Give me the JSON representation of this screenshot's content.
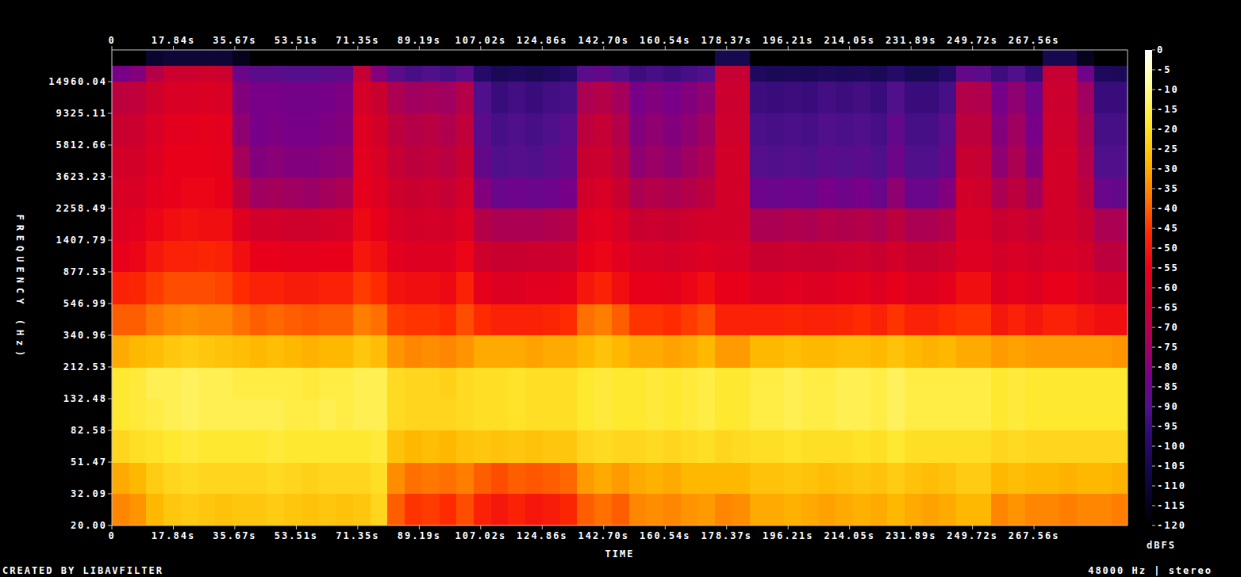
{
  "chart_data": {
    "type": "heatmap",
    "x_label": "TIME",
    "y_label": "FREQUENCY (Hz)",
    "credit": "CREATED BY LIBAVFILTER",
    "info": "48000 Hz | stereo",
    "log": "y",
    "xlim": [
      0,
      294.7
    ],
    "ylim": [
      20,
      24000
    ],
    "xticks": [
      0,
      {
        "value": 17.84,
        "label": "17.84s"
      },
      {
        "value": 35.67,
        "label": "35.67s"
      },
      {
        "value": 53.51,
        "label": "53.51s"
      },
      {
        "value": 71.35,
        "label": "71.35s"
      },
      {
        "value": 89.19,
        "label": "89.19s"
      },
      {
        "value": 107.02,
        "label": "107.02s"
      },
      {
        "value": 124.86,
        "label": "124.86s"
      },
      {
        "value": 142.7,
        "label": "142.70s"
      },
      {
        "value": 160.54,
        "label": "160.54s"
      },
      {
        "value": 178.37,
        "label": "178.37s"
      },
      {
        "value": 196.21,
        "label": "196.21s"
      },
      {
        "value": 214.05,
        "label": "214.05s"
      },
      {
        "value": 231.89,
        "label": "231.89s"
      },
      {
        "value": 249.72,
        "label": "249.72s"
      },
      {
        "value": 267.56,
        "label": "267.56s"
      }
    ],
    "yticks": [
      {
        "value": 20,
        "label": "20.00"
      },
      {
        "value": 32.09,
        "label": "32.09"
      },
      {
        "value": 51.47,
        "label": "51.47"
      },
      {
        "value": 82.58,
        "label": "82.58"
      },
      {
        "value": 132.48,
        "label": "132.48"
      },
      {
        "value": 212.53,
        "label": "212.53"
      },
      {
        "value": 340.96,
        "label": "340.96"
      },
      {
        "value": 546.99,
        "label": "546.99"
      },
      {
        "value": 877.53,
        "label": "877.53"
      },
      {
        "value": 1407.79,
        "label": "1407.79"
      },
      {
        "value": 2258.49,
        "label": "2258.49"
      },
      {
        "value": 3623.23,
        "label": "3623.23"
      },
      {
        "value": 5812.66,
        "label": "5812.66"
      },
      {
        "value": 9325.11,
        "label": "9325.11"
      },
      {
        "value": 14960.04,
        "label": "14960.04"
      }
    ],
    "x_bins": [
      0,
      5,
      10,
      15,
      20,
      25,
      30,
      35,
      40,
      45,
      50,
      55,
      60,
      65,
      70,
      75,
      80,
      85,
      90,
      95,
      100,
      105,
      110,
      115,
      120,
      125,
      130,
      135,
      140,
      145,
      150,
      155,
      160,
      165,
      170,
      175,
      180,
      185,
      190,
      195,
      200,
      205,
      210,
      215,
      220,
      225,
      230,
      235,
      240,
      245,
      250,
      255,
      260,
      265,
      270,
      275,
      280,
      285,
      290,
      294.7
    ],
    "y_bins": [
      20,
      32.09,
      51.47,
      82.58,
      132.48,
      212.53,
      340.96,
      546.99,
      877.53,
      1407.79,
      2258.49,
      3623.23,
      5812.66,
      9325.11,
      14960.04,
      19000,
      24000
    ],
    "cells": [
      [
        -35,
        -30,
        -22,
        -18,
        -18,
        -30,
        -40,
        -48,
        -55,
        -58,
        -60,
        -62,
        -65,
        -68,
        -82,
        -120
      ],
      [
        -33,
        -28,
        -20,
        -17,
        -17,
        -28,
        -40,
        -47,
        -54,
        -57,
        -60,
        -62,
        -64,
        -67,
        -80,
        -120
      ],
      [
        -28,
        -24,
        -19,
        -16,
        -15,
        -27,
        -37,
        -44,
        -50,
        -54,
        -57,
        -58,
        -60,
        -63,
        -70,
        -112
      ],
      [
        -25,
        -22,
        -18,
        -15,
        -15,
        -25,
        -35,
        -42,
        -48,
        -52,
        -55,
        -55,
        -57,
        -60,
        -64,
        -110
      ],
      [
        -24,
        -21,
        -17,
        -14,
        -14,
        -24,
        -34,
        -42,
        -48,
        -51,
        -54,
        -55,
        -57,
        -60,
        -64,
        -110
      ],
      [
        -25,
        -22,
        -18,
        -15,
        -15,
        -25,
        -35,
        -42,
        -47,
        -52,
        -54,
        -55,
        -56,
        -59,
        -63,
        -110
      ],
      [
        -26,
        -22,
        -18,
        -15,
        -15,
        -26,
        -35,
        -43,
        -48,
        -52,
        -55,
        -56,
        -57,
        -60,
        -64,
        -110
      ],
      [
        -25,
        -22,
        -18,
        -15,
        -16,
        -27,
        -38,
        -46,
        -52,
        -58,
        -68,
        -74,
        -78,
        -80,
        -85,
        -115
      ],
      [
        -25,
        -22,
        -18,
        -15,
        -16,
        -28,
        -40,
        -48,
        -55,
        -62,
        -75,
        -80,
        -82,
        -82,
        -88,
        -120
      ],
      [
        -24,
        -21,
        -17,
        -15,
        -16,
        -27,
        -39,
        -48,
        -55,
        -62,
        -74,
        -79,
        -81,
        -82,
        -88,
        -120
      ],
      [
        -25,
        -22,
        -18,
        -16,
        -16,
        -28,
        -40,
        -49,
        -56,
        -63,
        -75,
        -80,
        -82,
        -83,
        -89,
        -120
      ],
      [
        -26,
        -23,
        -18,
        -16,
        -17,
        -29,
        -41,
        -49,
        -56,
        -63,
        -76,
        -80,
        -82,
        -83,
        -89,
        -120
      ],
      [
        -25,
        -22,
        -18,
        -15,
        -16,
        -28,
        -40,
        -48,
        -55,
        -62,
        -74,
        -79,
        -81,
        -82,
        -88,
        -120
      ],
      [
        -26,
        -22,
        -18,
        -16,
        -16,
        -28,
        -40,
        -48,
        -55,
        -61,
        -72,
        -78,
        -80,
        -81,
        -87,
        -120
      ],
      [
        -25,
        -22,
        -18,
        -15,
        -15,
        -25,
        -36,
        -44,
        -50,
        -53,
        -56,
        -57,
        -58,
        -61,
        -66,
        -120
      ],
      [
        -22,
        -20,
        -17,
        -15,
        -15,
        -27,
        -38,
        -46,
        -52,
        -55,
        -58,
        -60,
        -62,
        -65,
        -80,
        -120
      ],
      [
        -40,
        -34,
        -26,
        -21,
        -21,
        -33,
        -44,
        -51,
        -57,
        -60,
        -63,
        -66,
        -68,
        -72,
        -88,
        -120
      ],
      [
        -45,
        -38,
        -28,
        -22,
        -22,
        -35,
        -45,
        -52,
        -58,
        -62,
        -65,
        -68,
        -70,
        -75,
        -92,
        -120
      ],
      [
        -44,
        -37,
        -27,
        -22,
        -22,
        -34,
        -45,
        -52,
        -58,
        -61,
        -64,
        -67,
        -69,
        -74,
        -90,
        -120
      ],
      [
        -46,
        -38,
        -28,
        -22,
        -23,
        -35,
        -46,
        -53,
        -58,
        -62,
        -66,
        -69,
        -71,
        -75,
        -92,
        -120
      ],
      [
        -42,
        -36,
        -26,
        -21,
        -21,
        -33,
        -42,
        -48,
        -54,
        -58,
        -62,
        -65,
        -67,
        -70,
        -88,
        -120
      ],
      [
        -48,
        -40,
        -25,
        -20,
        -20,
        -30,
        -46,
        -56,
        -63,
        -70,
        -80,
        -86,
        -88,
        -90,
        -100,
        -120
      ],
      [
        -50,
        -42,
        -26,
        -20,
        -20,
        -30,
        -48,
        -58,
        -65,
        -72,
        -85,
        -90,
        -92,
        -95,
        -104,
        -120
      ],
      [
        -48,
        -40,
        -25,
        -19,
        -19,
        -30,
        -48,
        -58,
        -65,
        -72,
        -84,
        -89,
        -90,
        -93,
        -102,
        -120
      ],
      [
        -50,
        -41,
        -26,
        -20,
        -20,
        -31,
        -48,
        -57,
        -64,
        -72,
        -85,
        -90,
        -92,
        -95,
        -104,
        -120
      ],
      [
        -49,
        -40,
        -25,
        -20,
        -20,
        -30,
        -47,
        -57,
        -64,
        -71,
        -84,
        -88,
        -90,
        -93,
        -102,
        -120
      ],
      [
        -47,
        -39,
        -25,
        -20,
        -20,
        -30,
        -46,
        -56,
        -63,
        -70,
        -82,
        -86,
        -88,
        -92,
        -100,
        -120
      ],
      [
        -40,
        -32,
        -22,
        -18,
        -18,
        -28,
        -38,
        -50,
        -55,
        -58,
        -62,
        -65,
        -68,
        -72,
        -88,
        -120
      ],
      [
        -38,
        -30,
        -21,
        -17,
        -17,
        -26,
        -36,
        -48,
        -54,
        -57,
        -60,
        -64,
        -66,
        -70,
        -86,
        -120
      ],
      [
        -40,
        -32,
        -22,
        -18,
        -18,
        -28,
        -40,
        -52,
        -57,
        -60,
        -65,
        -68,
        -70,
        -74,
        -90,
        -120
      ],
      [
        -35,
        -30,
        -22,
        -18,
        -18,
        -30,
        -45,
        -55,
        -60,
        -65,
        -72,
        -78,
        -80,
        -82,
        -94,
        -120
      ],
      [
        -34,
        -29,
        -21,
        -17,
        -17,
        -30,
        -45,
        -55,
        -60,
        -64,
        -70,
        -76,
        -78,
        -80,
        -92,
        -120
      ],
      [
        -35,
        -30,
        -22,
        -18,
        -18,
        -31,
        -46,
        -56,
        -61,
        -65,
        -72,
        -78,
        -80,
        -82,
        -94,
        -120
      ],
      [
        -33,
        -28,
        -21,
        -17,
        -17,
        -30,
        -44,
        -54,
        -60,
        -63,
        -70,
        -75,
        -78,
        -80,
        -92,
        -120
      ],
      [
        -32,
        -28,
        -20,
        -16,
        -16,
        -28,
        -42,
        -52,
        -58,
        -62,
        -68,
        -72,
        -75,
        -78,
        -90,
        -120
      ],
      [
        -35,
        -28,
        -22,
        -18,
        -18,
        -32,
        -48,
        -55,
        -60,
        -62,
        -62,
        -62,
        -63,
        -64,
        -66,
        -105
      ],
      [
        -34,
        -28,
        -21,
        -18,
        -18,
        -32,
        -48,
        -55,
        -60,
        -62,
        -62,
        -62,
        -63,
        -64,
        -66,
        -105
      ],
      [
        -30,
        -26,
        -20,
        -16,
        -16,
        -28,
        -48,
        -58,
        -65,
        -72,
        -84,
        -89,
        -91,
        -94,
        -102,
        -120
      ],
      [
        -30,
        -26,
        -20,
        -16,
        -16,
        -28,
        -48,
        -58,
        -65,
        -72,
        -85,
        -90,
        -92,
        -95,
        -104,
        -120
      ],
      [
        -29,
        -25,
        -19,
        -15,
        -15,
        -27,
        -47,
        -57,
        -64,
        -71,
        -84,
        -89,
        -91,
        -94,
        -103,
        -120
      ],
      [
        -30,
        -26,
        -20,
        -16,
        -16,
        -28,
        -48,
        -58,
        -65,
        -72,
        -85,
        -90,
        -92,
        -95,
        -104,
        -120
      ],
      [
        -31,
        -27,
        -20,
        -16,
        -16,
        -28,
        -48,
        -58,
        -65,
        -70,
        -82,
        -88,
        -90,
        -93,
        -102,
        -120
      ],
      [
        -30,
        -26,
        -20,
        -15,
        -15,
        -27,
        -47,
        -57,
        -64,
        -71,
        -84,
        -89,
        -91,
        -94,
        -103,
        -120
      ],
      [
        -29,
        -25,
        -19,
        -15,
        -15,
        -27,
        -46,
        -56,
        -63,
        -70,
        -82,
        -88,
        -90,
        -93,
        -102,
        -120
      ],
      [
        -30,
        -26,
        -20,
        -16,
        -16,
        -28,
        -48,
        -58,
        -65,
        -72,
        -85,
        -90,
        -92,
        -95,
        -104,
        -120
      ],
      [
        -28,
        -24,
        -18,
        -14,
        -14,
        -26,
        -45,
        -55,
        -62,
        -68,
        -78,
        -84,
        -86,
        -90,
        -100,
        -120
      ],
      [
        -30,
        -26,
        -20,
        -16,
        -16,
        -28,
        -48,
        -58,
        -65,
        -72,
        -85,
        -90,
        -92,
        -95,
        -104,
        -120
      ],
      [
        -31,
        -27,
        -20,
        -16,
        -16,
        -29,
        -48,
        -58,
        -65,
        -72,
        -85,
        -90,
        -92,
        -95,
        -104,
        -120
      ],
      [
        -30,
        -26,
        -20,
        -16,
        -16,
        -28,
        -46,
        -56,
        -63,
        -70,
        -80,
        -86,
        -88,
        -92,
        -100,
        -120
      ],
      [
        -28,
        -24,
        -20,
        -16,
        -16,
        -30,
        -45,
        -52,
        -58,
        -60,
        -62,
        -65,
        -68,
        -70,
        -86,
        -120
      ],
      [
        -28,
        -24,
        -20,
        -16,
        -16,
        -30,
        -45,
        -52,
        -58,
        -60,
        -63,
        -66,
        -68,
        -71,
        -88,
        -120
      ],
      [
        -35,
        -28,
        -22,
        -18,
        -18,
        -32,
        -50,
        -58,
        -62,
        -65,
        -72,
        -78,
        -80,
        -82,
        -94,
        -120
      ],
      [
        -33,
        -27,
        -21,
        -17,
        -17,
        -31,
        -48,
        -56,
        -60,
        -63,
        -68,
        -72,
        -75,
        -78,
        -90,
        -120
      ],
      [
        -35,
        -28,
        -22,
        -18,
        -18,
        -32,
        -50,
        -58,
        -62,
        -66,
        -74,
        -80,
        -82,
        -84,
        -96,
        -120
      ],
      [
        -35,
        -28,
        -22,
        -18,
        -18,
        -32,
        -48,
        -55,
        -60,
        -62,
        -62,
        -62,
        -63,
        -64,
        -66,
        -105
      ],
      [
        -36,
        -29,
        -22,
        -18,
        -18,
        -32,
        -48,
        -55,
        -60,
        -62,
        -62,
        -62,
        -63,
        -64,
        -66,
        -105
      ],
      [
        -35,
        -28,
        -22,
        -18,
        -18,
        -32,
        -50,
        -58,
        -62,
        -65,
        -68,
        -70,
        -72,
        -75,
        -84,
        -115
      ],
      [
        -35,
        -28,
        -22,
        -18,
        -18,
        -32,
        -52,
        -62,
        -68,
        -72,
        -85,
        -90,
        -92,
        -95,
        -102,
        -120
      ],
      [
        -36,
        -29,
        -22,
        -18,
        -18,
        -33,
        -52,
        -62,
        -68,
        -72,
        -86,
        -90,
        -92,
        -95,
        -103,
        -120
      ]
    ],
    "colorbar": {
      "lim": [
        -120,
        0
      ],
      "ticks": [
        0,
        -5,
        -10,
        -15,
        -20,
        -25,
        -30,
        -35,
        -40,
        -45,
        -50,
        -55,
        -60,
        -65,
        -70,
        -75,
        -80,
        -85,
        -90,
        -95,
        -100,
        -105,
        -110,
        -115,
        -120
      ],
      "label": "dBFS"
    }
  }
}
